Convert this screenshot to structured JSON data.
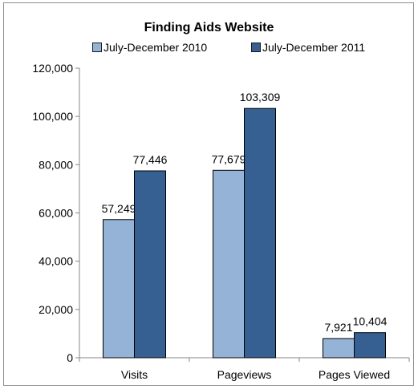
{
  "chart_data": {
    "type": "bar",
    "title": "Finding Aids Website",
    "categories": [
      "Visits",
      "Pageviews",
      "Pages Viewed"
    ],
    "series": [
      {
        "name": "July-December 2010",
        "values": [
          57249,
          77679,
          7921
        ],
        "color": "#95b3d7"
      },
      {
        "name": "July-December 2011",
        "values": [
          77446,
          103309,
          10404
        ],
        "color": "#366092"
      }
    ],
    "data_labels": [
      [
        "57,249",
        "77,679",
        "7,921"
      ],
      [
        "77,446",
        "103,309",
        "10,404"
      ]
    ],
    "ylim": [
      0,
      120000
    ],
    "yticks": [
      0,
      20000,
      40000,
      60000,
      80000,
      100000,
      120000
    ],
    "ytick_labels": [
      "0",
      "20,000",
      "40,000",
      "60,000",
      "80,000",
      "100,000",
      "120,000"
    ],
    "legend_position": "top",
    "grid": false
  }
}
